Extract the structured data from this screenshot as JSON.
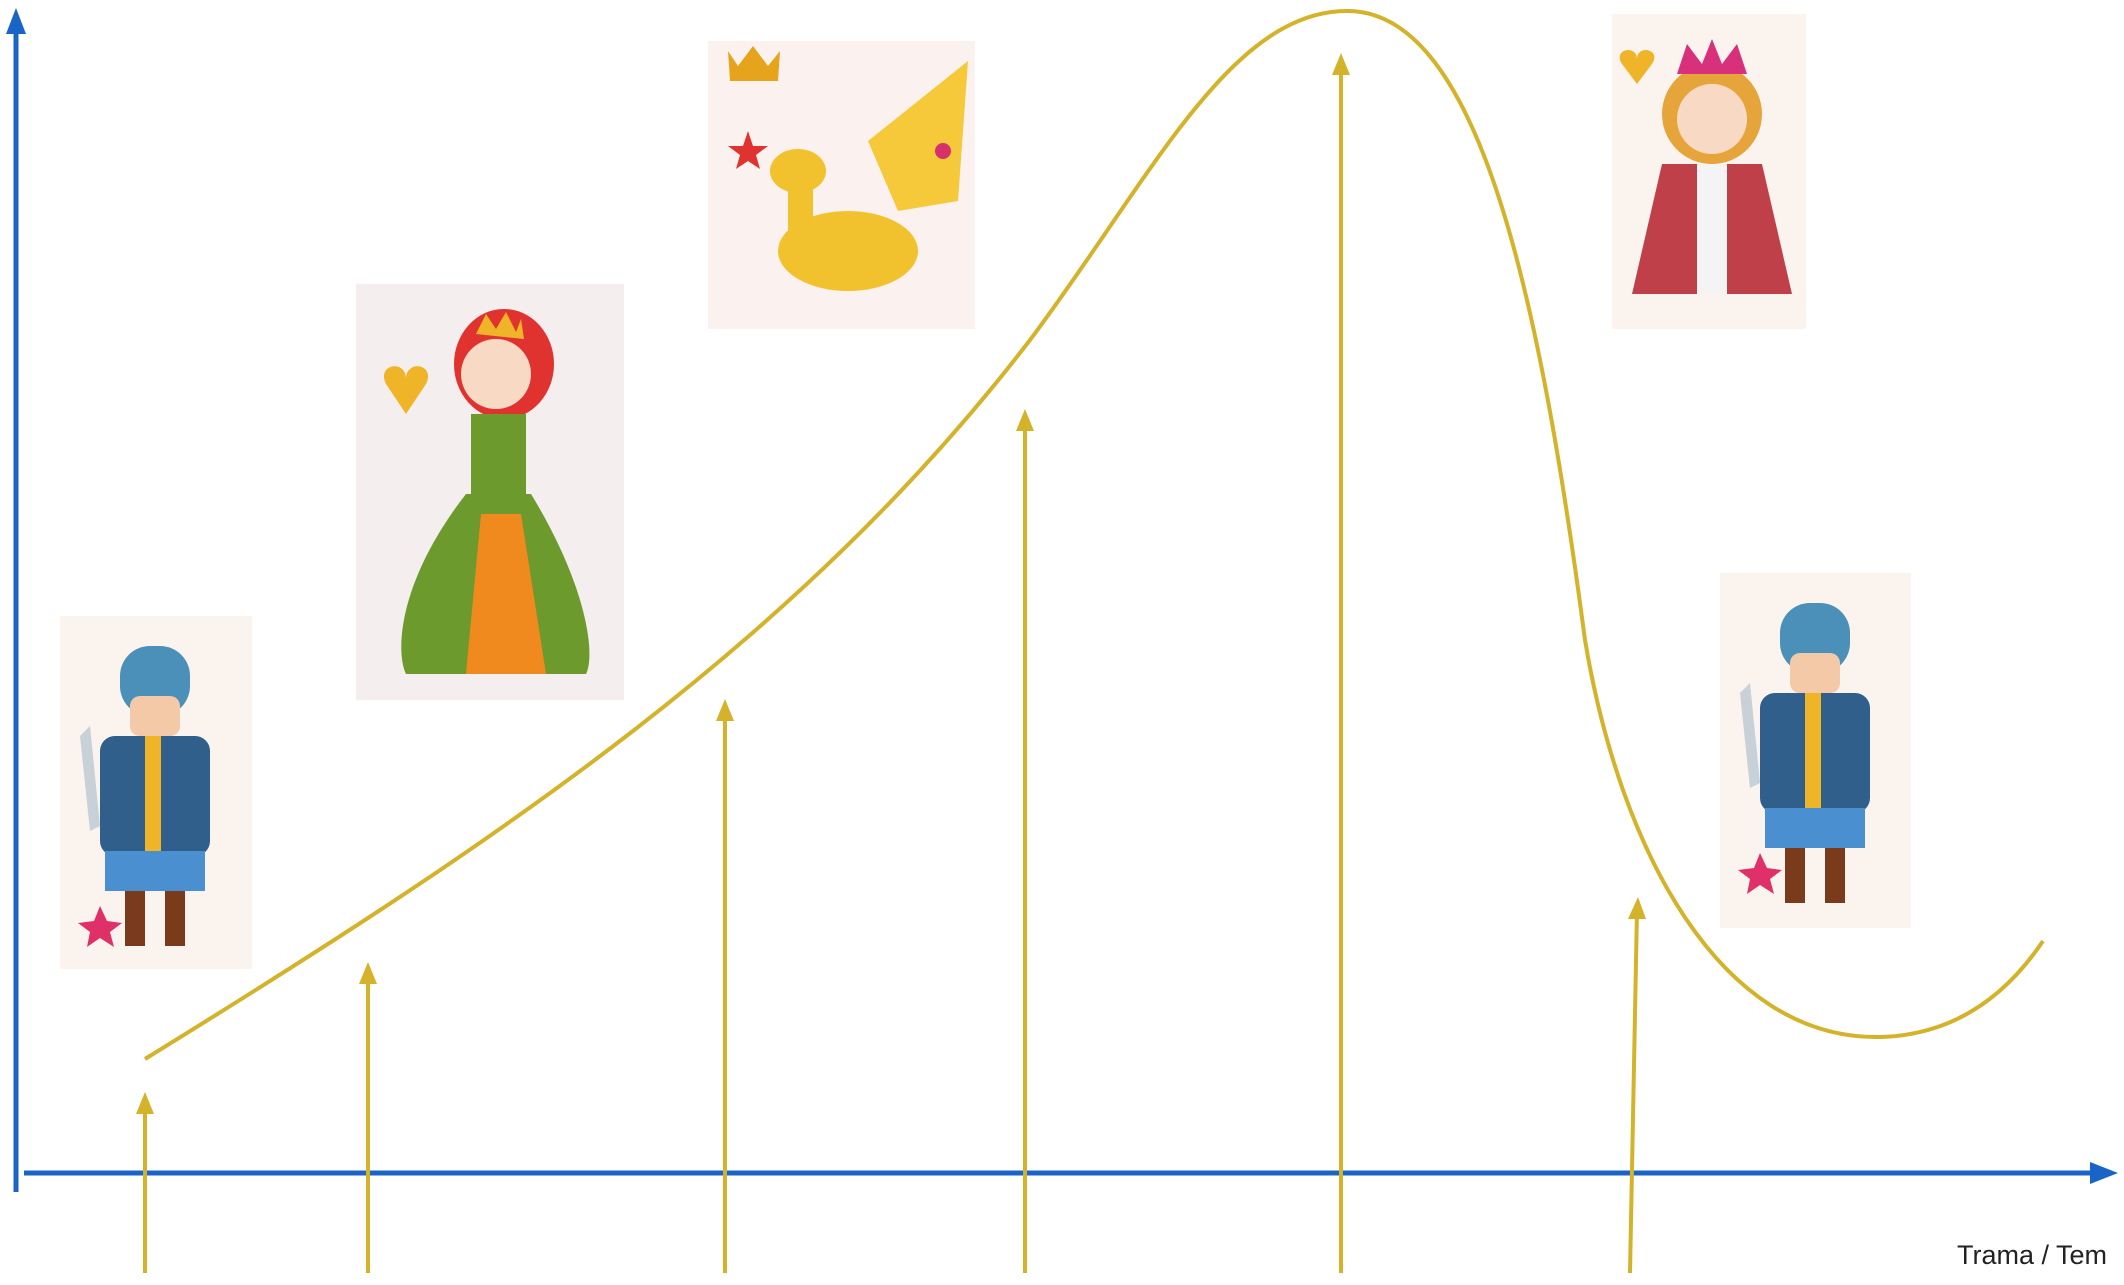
{
  "axis_label": "Trama / Tem"
}
